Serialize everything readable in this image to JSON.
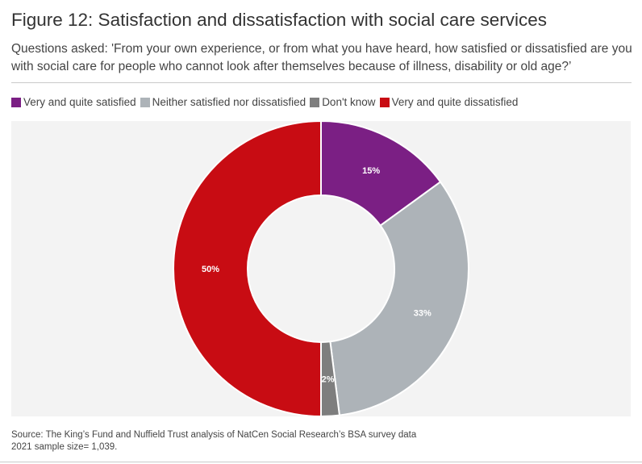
{
  "header": {
    "title": "Figure 12: Satisfaction and dissatisfaction with social care services",
    "subtitle": "Questions asked: 'From your own experience, or from what you have heard, how satisfied or dissatisfied are you with social care for people who cannot look after themselves because of illness, disability or old age?’"
  },
  "legend": [
    {
      "label": "Very and quite satisfied",
      "color": "#7b1f84"
    },
    {
      "label": "Neither satisfied nor dissatisfied",
      "color": "#adb3b8"
    },
    {
      "label": "Don't know",
      "color": "#7e7e7e"
    },
    {
      "label": "Very and quite dissatisfied",
      "color": "#c80c13"
    }
  ],
  "chart_data": {
    "type": "pie",
    "subtype": "donut",
    "title": "Figure 12: Satisfaction and dissatisfaction with social care services",
    "categories": [
      "Very and quite satisfied",
      "Neither satisfied nor dissatisfied",
      "Don't know",
      "Very and quite dissatisfied"
    ],
    "values": [
      15,
      33,
      2,
      50
    ],
    "labels": [
      "15%",
      "33%",
      "2%",
      "50%"
    ],
    "colors": [
      "#7b1f84",
      "#adb3b8",
      "#7e7e7e",
      "#c80c13"
    ],
    "legend_position": "top-left"
  },
  "footer": {
    "source": "Source: The King’s Fund and Nuffield Trust analysis of NatCen Social Research’s BSA survey data",
    "sample": "2021 sample size= 1,039."
  }
}
